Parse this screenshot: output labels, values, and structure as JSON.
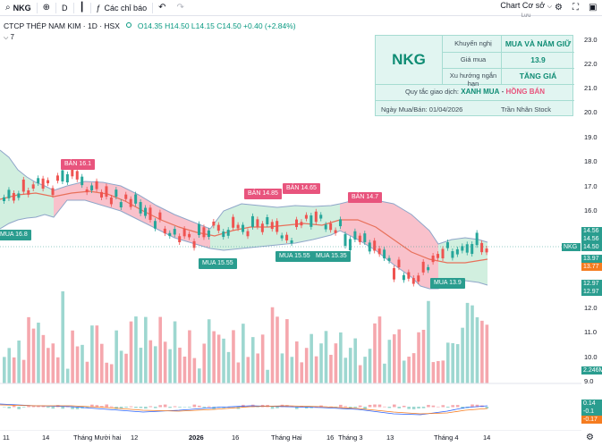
{
  "toolbar": {
    "symbol": "NKG",
    "interval": "D",
    "indicators_label": "Các chỉ báo",
    "chart_name": "Chart Cơ sở",
    "chart_saved": "Lưu"
  },
  "legend": {
    "title": "CTCP THÉP NAM KIM · 1D · HSX",
    "ohlc": "O14.35 H14.50 L14.15 C14.50 +0.40 (+2.84%)",
    "indicator_count": "7"
  },
  "infobox": {
    "ticker": "NKG",
    "recommendation_label": "Khuyến nghị",
    "recommendation_value": "MUA VÀ NẮM GIỮ",
    "buy_price_label": "Giá mua",
    "buy_price_value": "13.9",
    "trend_label": "Xu hướng ngắn hạn",
    "trend_value": "TĂNG GIÁ",
    "rule_prefix": "Quy tắc giao dịch:",
    "rule_buy": "XANH MUA",
    "rule_dash": " - ",
    "rule_sell": "HỒNG BÁN",
    "date_text": "Ngày Mua/Bán: 01/04/2026",
    "author": "Trần Nhân Stock",
    "accent_green": "#0f8c74",
    "accent_pink": "#e8547d"
  },
  "signals": {
    "sell": [
      "BÁN 16.1",
      "BÁN 14.85",
      "BÁN 14.65",
      "BÁN 14.7"
    ],
    "buy": [
      "MUA 16.8",
      "MUA 15.55",
      "MUA 15.55",
      "MUA 15.35",
      "MUA 13.9"
    ]
  },
  "price_axis": {
    "ticks": [
      "23.0",
      "22.0",
      "21.0",
      "20.0",
      "19.0",
      "18.0",
      "17.0",
      "16.0",
      "15.0",
      "14.0",
      "13.0",
      "12.0",
      "11.0",
      "10.0",
      "9.0"
    ],
    "badges": [
      {
        "text": "14.56",
        "color": "#2a9d8f"
      },
      {
        "text": "14.56",
        "color": "#2a9d8f"
      },
      {
        "text": "14.50",
        "color": "#2a9d8f"
      },
      {
        "text": "13.97",
        "color": "#2a9d8f"
      },
      {
        "text": "13.77",
        "color": "#f57c20"
      },
      {
        "text": "12.97",
        "color": "#2a9d8f"
      },
      {
        "text": "12.97",
        "color": "#2a9d8f"
      },
      {
        "text": "2.246M",
        "color": "#2a9d8f"
      },
      {
        "text": "0.14",
        "color": "#2a9d8f"
      },
      {
        "text": "-0.1",
        "color": "#2a9d8f"
      },
      {
        "text": "-0.17",
        "color": "#f57c20"
      }
    ],
    "symbol_badge": "NKG"
  },
  "time_axis": {
    "labels": [
      "11",
      "14",
      "Tháng Mười hai",
      "12",
      "2026",
      "16",
      "Tháng Hai",
      "16",
      "Tháng 3",
      "13",
      "Tháng 4",
      "14"
    ]
  }
}
